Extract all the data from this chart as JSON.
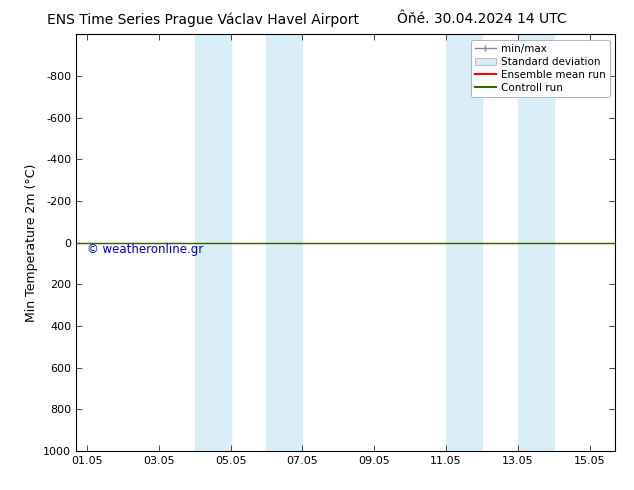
{
  "title_left": "ENS Time Series Prague Václav Havel Airport",
  "title_right": "Ôňé. 30.04.2024 14 UTC",
  "ylabel": "Min Temperature 2m (°C)",
  "ylim_top": -1000,
  "ylim_bottom": 1000,
  "yticks": [
    -800,
    -600,
    -400,
    -200,
    0,
    200,
    400,
    600,
    800,
    1000
  ],
  "xtick_labels": [
    "01.05",
    "03.05",
    "05.05",
    "07.05",
    "09.05",
    "11.05",
    "13.05",
    "15.05"
  ],
  "xtick_positions": [
    0,
    2,
    4,
    6,
    8,
    10,
    12,
    14
  ],
  "xlim": [
    -0.3,
    14.7
  ],
  "blue_bands": [
    {
      "start": 3.0,
      "end": 4.0
    },
    {
      "start": 5.0,
      "end": 6.0
    },
    {
      "start": 10.0,
      "end": 11.0
    },
    {
      "start": 12.0,
      "end": 13.0
    }
  ],
  "green_line_y": 0,
  "red_line_y": 0,
  "watermark": "© weatheronline.gr",
  "watermark_color": "#0000cc",
  "legend_labels": [
    "min/max",
    "Standard deviation",
    "Ensemble mean run",
    "Controll run"
  ],
  "legend_line_color": "#888888",
  "legend_std_color": "#cccccc",
  "legend_ens_color": "#ff0000",
  "legend_ctrl_color": "#336600",
  "background_color": "#ffffff",
  "title_fontsize": 10,
  "axis_label_fontsize": 9,
  "tick_fontsize": 8,
  "legend_fontsize": 7.5
}
